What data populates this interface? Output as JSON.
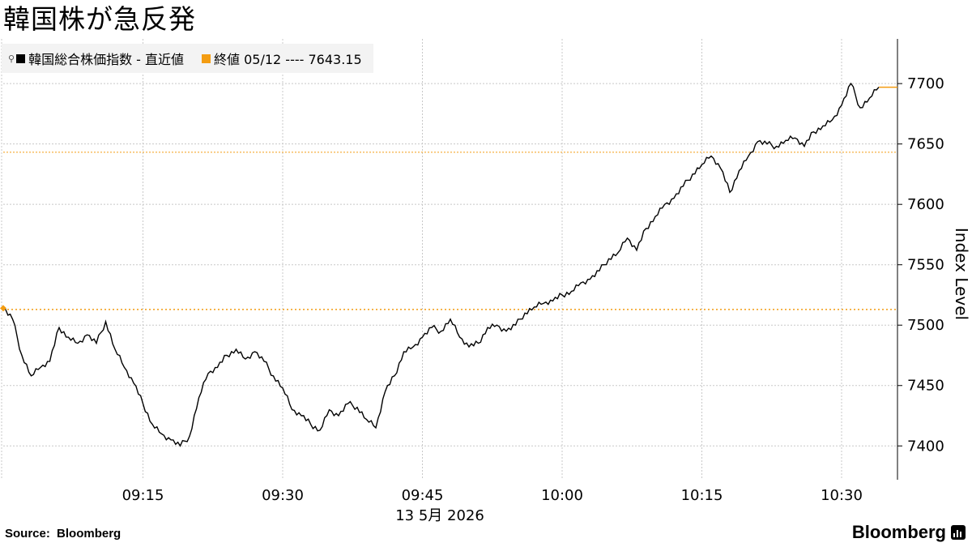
{
  "title": "韓国株が急反発",
  "legend": {
    "series_label": "韓国総合株価指数 - 直近値",
    "close_label": "終値 05/12 ---- 7643.15"
  },
  "colors": {
    "series": "#000000",
    "close_line": "#f39c12",
    "grid": "#c8c8c8",
    "legend_bg": "#f3f3f3"
  },
  "footer": {
    "source_label": "Source:",
    "source_name": "Bloomberg",
    "brand": "Bloomberg"
  },
  "chart_data": {
    "type": "line",
    "title": "韓国株が急反発",
    "ylabel": "Index Level",
    "xlabel": "13 5月 2026",
    "ylim": [
      7372,
      7737
    ],
    "yticks": [
      7400,
      7450,
      7500,
      7550,
      7600,
      7650,
      7700
    ],
    "xticks": [
      "09:15",
      "09:30",
      "09:45",
      "10:00",
      "10:15",
      "10:30"
    ],
    "xrange": [
      "09:00",
      "10:36"
    ],
    "grid": true,
    "y_axis_side": "right",
    "legend_position": "top-left",
    "reference_lines": [
      {
        "label": "終値 05/12",
        "value": 7643.15,
        "style": "dotted"
      },
      {
        "value": 7513,
        "style": "dotted"
      }
    ],
    "series": [
      {
        "name": "韓国総合株価指数 - 直近値",
        "x": [
          "09:00",
          "09:01",
          "09:02",
          "09:03",
          "09:04",
          "09:05",
          "09:06",
          "09:07",
          "09:08",
          "09:09",
          "09:10",
          "09:11",
          "09:12",
          "09:13",
          "09:14",
          "09:15",
          "09:16",
          "09:17",
          "09:18",
          "09:19",
          "09:20",
          "09:21",
          "09:22",
          "09:23",
          "09:24",
          "09:25",
          "09:26",
          "09:27",
          "09:28",
          "09:29",
          "09:30",
          "09:31",
          "09:32",
          "09:33",
          "09:34",
          "09:35",
          "09:36",
          "09:37",
          "09:38",
          "09:39",
          "09:40",
          "09:41",
          "09:42",
          "09:43",
          "09:44",
          "09:45",
          "09:46",
          "09:47",
          "09:48",
          "09:49",
          "09:50",
          "09:51",
          "09:52",
          "09:53",
          "09:54",
          "09:55",
          "09:56",
          "09:57",
          "09:58",
          "09:59",
          "10:00",
          "10:01",
          "10:02",
          "10:03",
          "10:04",
          "10:05",
          "10:06",
          "10:07",
          "10:08",
          "10:09",
          "10:10",
          "10:11",
          "10:12",
          "10:13",
          "10:14",
          "10:15",
          "10:16",
          "10:17",
          "10:18",
          "10:19",
          "10:20",
          "10:21",
          "10:22",
          "10:23",
          "10:24",
          "10:25",
          "10:26",
          "10:27",
          "10:28",
          "10:29",
          "10:30",
          "10:31",
          "10:32",
          "10:33",
          "10:34"
        ],
        "values": [
          7514,
          7505,
          7475,
          7458,
          7465,
          7470,
          7498,
          7490,
          7485,
          7492,
          7485,
          7503,
          7480,
          7465,
          7452,
          7435,
          7418,
          7410,
          7405,
          7400,
          7408,
          7440,
          7460,
          7465,
          7475,
          7480,
          7472,
          7478,
          7470,
          7458,
          7448,
          7430,
          7425,
          7418,
          7413,
          7430,
          7425,
          7435,
          7432,
          7422,
          7415,
          7445,
          7458,
          7478,
          7482,
          7490,
          7498,
          7495,
          7505,
          7490,
          7482,
          7485,
          7498,
          7500,
          7495,
          7500,
          7510,
          7515,
          7518,
          7520,
          7525,
          7528,
          7535,
          7538,
          7545,
          7555,
          7560,
          7572,
          7562,
          7580,
          7590,
          7600,
          7605,
          7615,
          7625,
          7633,
          7640,
          7630,
          7610,
          7628,
          7640,
          7652,
          7650,
          7648,
          7653,
          7655,
          7648,
          7660,
          7665,
          7670,
          7682,
          7700,
          7680,
          7688,
          7697
        ]
      }
    ]
  }
}
